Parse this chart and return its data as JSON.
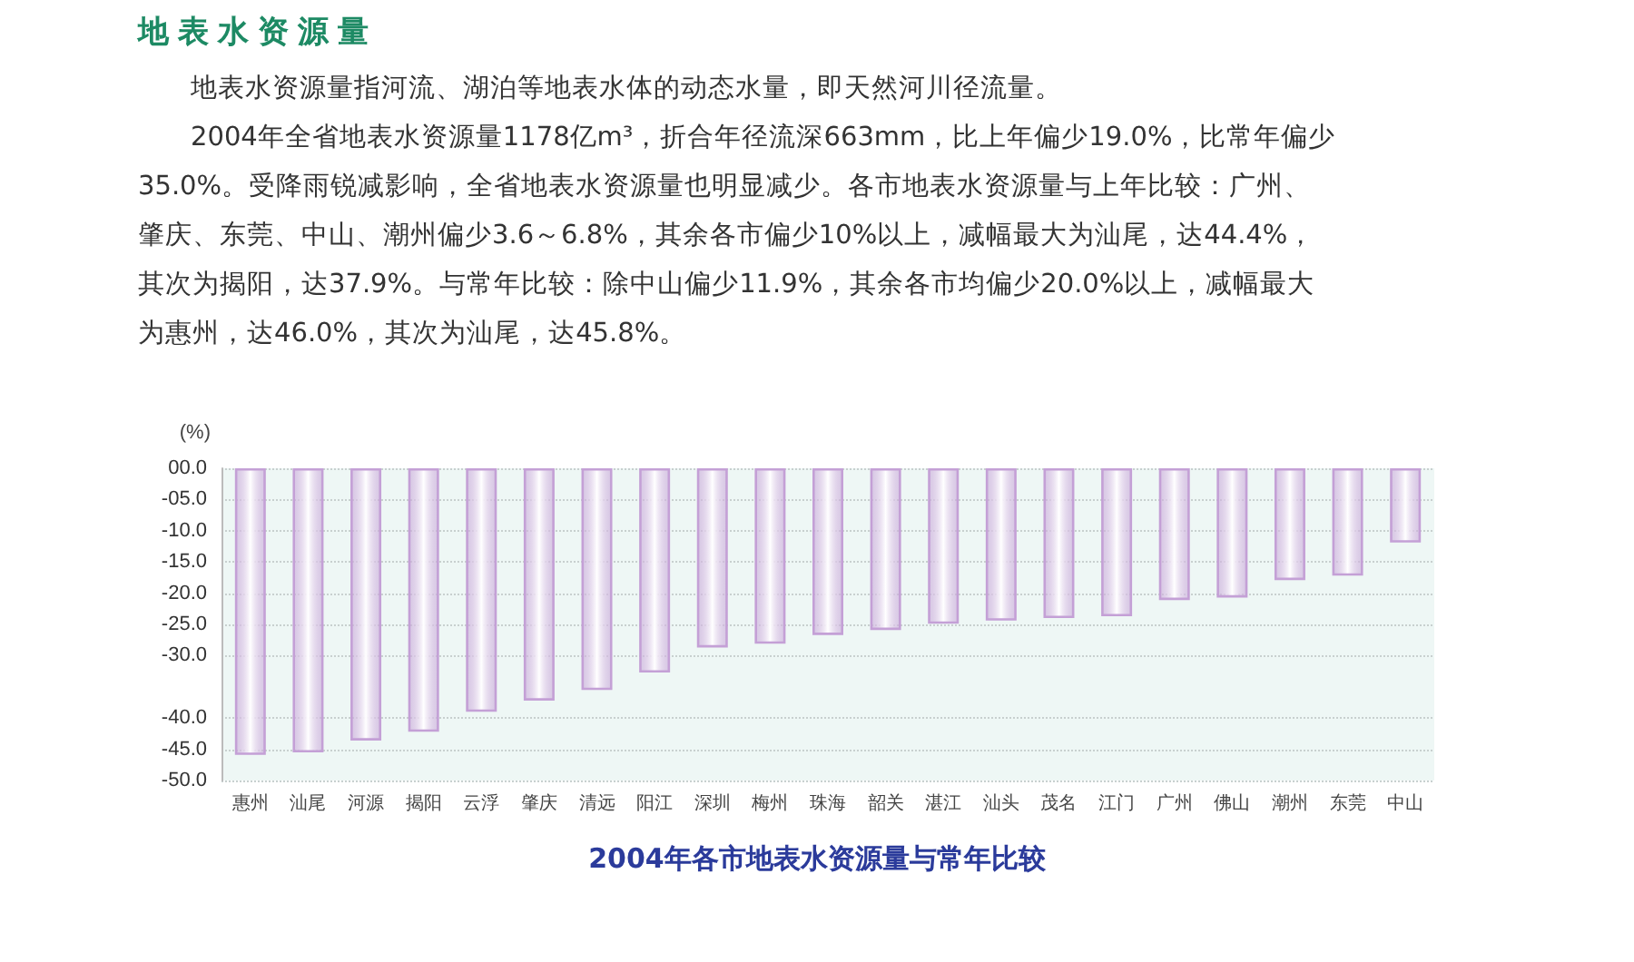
{
  "chart_data": {
    "type": "bar",
    "title": "2004年各市地表水资源量与常年比较",
    "ylabel": "(%)",
    "annotations": [
      "地表水资源量",
      "地表水资源量指河流、湖泊等地表水体的动态水量，即天然河川径流量。",
      "2004年全省地表水资源量1178亿m³，折合年径流深663mm，比上年偏少19.0%，比常年偏少35.0%。受降雨锐减影响，全省地表水资源量也明显减少。各市地表水资源量与上年比较：广州、肇庆、东莞、中山、潮州偏少3.6～6.8%，其余各市偏少10%以上，减幅最大为汕尾，达44.4%，其次为揭阳，达37.9%。与常年比较：除中山偏少11.9%，其余各市均偏少20.0%以上，减幅最大为惠州，达46.0%，其次为汕尾，达45.8%。"
    ],
    "categories": [
      "惠州",
      "汕尾",
      "河源",
      "揭阳",
      "云浮",
      "肇庆",
      "清远",
      "阳江",
      "深圳",
      "梅州",
      "珠海",
      "韶关",
      "湛江",
      "汕头",
      "茂名",
      "江门",
      "广州",
      "佛山",
      "潮州",
      "东莞",
      "中山"
    ],
    "series": [
      {
        "color": "#c4a0d6",
        "values": [
          -45.9,
          -45.5,
          -43.6,
          -42.2,
          -39.0,
          -37.2,
          -35.5,
          -32.7,
          -28.7,
          -28.1,
          -26.7,
          -25.9,
          -24.9,
          -24.4,
          -24.0,
          -23.7,
          -21.1,
          -20.7,
          -17.9,
          -17.2,
          -11.9
        ]
      }
    ],
    "ylim": [
      -50,
      0
    ],
    "yticks": [
      {
        "value": 0,
        "label": "00.0"
      },
      {
        "value": -5,
        "label": "-05.0"
      },
      {
        "value": -10,
        "label": "-10.0"
      },
      {
        "value": -15,
        "label": "-15.0"
      },
      {
        "value": -20,
        "label": "-20.0"
      },
      {
        "value": -25,
        "label": "-25.0"
      },
      {
        "value": -30,
        "label": "-30.0"
      },
      {
        "value": -40,
        "label": "-40.0"
      },
      {
        "value": -45,
        "label": "-45.0"
      },
      {
        "value": -50,
        "label": "-50.0"
      }
    ],
    "grid": "y"
  }
}
